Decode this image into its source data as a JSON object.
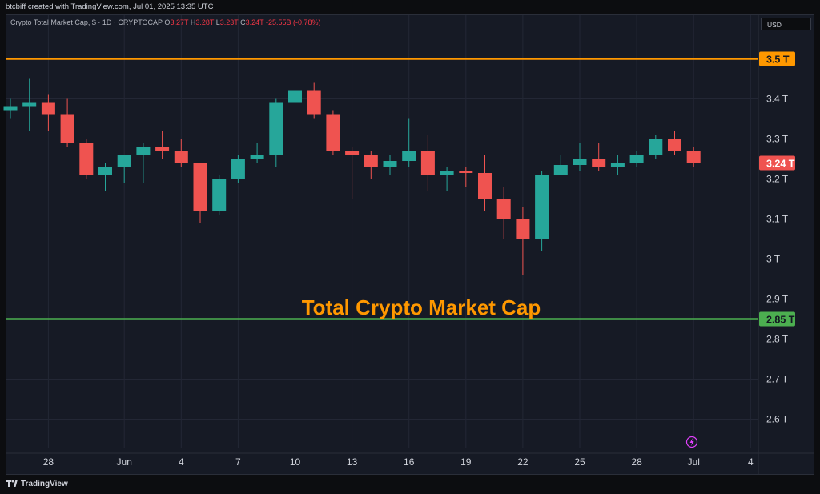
{
  "header": {
    "attribution": "btcbiff created with TradingView.com, Jul 01, 2025 13:35 UTC"
  },
  "legend": {
    "symbol": "Crypto Total Market Cap, $ · 1D · CRYPTOCAP",
    "open_label": "O",
    "open": "3.27T",
    "high_label": "H",
    "high": "3.28T",
    "low_label": "L",
    "low": "3.23T",
    "close_label": "C",
    "close": "3.24T",
    "change": "-25.55B (-0.78%)"
  },
  "currency_button": "USD",
  "footer": {
    "brand": "TradingView",
    "logo_icon": "tradingview-logo-icon"
  },
  "colors": {
    "up": "#26a69a",
    "down": "#ef5350",
    "resistance": "#ff9800",
    "support": "#4caf50",
    "title": "#ff9800",
    "grid": "#232735",
    "axis_text": "#d1d4dc"
  },
  "chart_data": {
    "type": "candlestick",
    "title": "Total Crypto Market Cap",
    "unit": "T",
    "ylim": [
      2.52,
      3.58
    ],
    "y_ticks": [
      2.6,
      2.7,
      2.8,
      2.9,
      3.0,
      3.1,
      3.2,
      3.3,
      3.4
    ],
    "y_tick_labels": [
      "2.6 T",
      "2.7 T",
      "2.8 T",
      "2.9 T",
      "3 T",
      "3.1 T",
      "3.2 T",
      "3.3 T",
      "3.4 T"
    ],
    "x_labels": [
      {
        "label": "28",
        "date": "2025-05-28"
      },
      {
        "label": "Jun",
        "date": "2025-06-01"
      },
      {
        "label": "4",
        "date": "2025-06-04"
      },
      {
        "label": "7",
        "date": "2025-06-07"
      },
      {
        "label": "10",
        "date": "2025-06-10"
      },
      {
        "label": "13",
        "date": "2025-06-13"
      },
      {
        "label": "16",
        "date": "2025-06-16"
      },
      {
        "label": "19",
        "date": "2025-06-19"
      },
      {
        "label": "22",
        "date": "2025-06-22"
      },
      {
        "label": "25",
        "date": "2025-06-25"
      },
      {
        "label": "28",
        "date": "2025-06-28"
      },
      {
        "label": "Jul",
        "date": "2025-07-01"
      },
      {
        "label": "4",
        "date": "2025-07-04"
      }
    ],
    "candles": [
      {
        "date": "2025-05-26",
        "open": 3.37,
        "high": 3.4,
        "low": 3.35,
        "close": 3.38
      },
      {
        "date": "2025-05-27",
        "open": 3.38,
        "high": 3.45,
        "low": 3.32,
        "close": 3.39
      },
      {
        "date": "2025-05-28",
        "open": 3.39,
        "high": 3.41,
        "low": 3.32,
        "close": 3.36
      },
      {
        "date": "2025-05-29",
        "open": 3.36,
        "high": 3.4,
        "low": 3.28,
        "close": 3.29
      },
      {
        "date": "2025-05-30",
        "open": 3.29,
        "high": 3.3,
        "low": 3.2,
        "close": 3.21
      },
      {
        "date": "2025-05-31",
        "open": 3.21,
        "high": 3.24,
        "low": 3.17,
        "close": 3.23
      },
      {
        "date": "2025-06-01",
        "open": 3.23,
        "high": 3.26,
        "low": 3.19,
        "close": 3.26
      },
      {
        "date": "2025-06-02",
        "open": 3.26,
        "high": 3.29,
        "low": 3.19,
        "close": 3.28
      },
      {
        "date": "2025-06-03",
        "open": 3.28,
        "high": 3.32,
        "low": 3.25,
        "close": 3.27
      },
      {
        "date": "2025-06-04",
        "open": 3.27,
        "high": 3.3,
        "low": 3.23,
        "close": 3.24
      },
      {
        "date": "2025-06-05",
        "open": 3.24,
        "high": 3.24,
        "low": 3.09,
        "close": 3.12
      },
      {
        "date": "2025-06-06",
        "open": 3.12,
        "high": 3.21,
        "low": 3.11,
        "close": 3.2
      },
      {
        "date": "2025-06-07",
        "open": 3.2,
        "high": 3.26,
        "low": 3.19,
        "close": 3.25
      },
      {
        "date": "2025-06-08",
        "open": 3.25,
        "high": 3.29,
        "low": 3.24,
        "close": 3.26
      },
      {
        "date": "2025-06-09",
        "open": 3.26,
        "high": 3.4,
        "low": 3.23,
        "close": 3.39
      },
      {
        "date": "2025-06-10",
        "open": 3.39,
        "high": 3.43,
        "low": 3.34,
        "close": 3.42
      },
      {
        "date": "2025-06-11",
        "open": 3.42,
        "high": 3.44,
        "low": 3.35,
        "close": 3.36
      },
      {
        "date": "2025-06-12",
        "open": 3.36,
        "high": 3.37,
        "low": 3.26,
        "close": 3.27
      },
      {
        "date": "2025-06-13",
        "open": 3.27,
        "high": 3.28,
        "low": 3.15,
        "close": 3.26
      },
      {
        "date": "2025-06-14",
        "open": 3.26,
        "high": 3.27,
        "low": 3.2,
        "close": 3.23
      },
      {
        "date": "2025-06-15",
        "open": 3.23,
        "high": 3.26,
        "low": 3.21,
        "close": 3.245
      },
      {
        "date": "2025-06-16",
        "open": 3.245,
        "high": 3.35,
        "low": 3.23,
        "close": 3.27
      },
      {
        "date": "2025-06-17",
        "open": 3.27,
        "high": 3.31,
        "low": 3.17,
        "close": 3.21
      },
      {
        "date": "2025-06-18",
        "open": 3.21,
        "high": 3.23,
        "low": 3.17,
        "close": 3.22
      },
      {
        "date": "2025-06-19",
        "open": 3.22,
        "high": 3.23,
        "low": 3.18,
        "close": 3.215
      },
      {
        "date": "2025-06-20",
        "open": 3.215,
        "high": 3.26,
        "low": 3.12,
        "close": 3.15
      },
      {
        "date": "2025-06-21",
        "open": 3.15,
        "high": 3.18,
        "low": 3.05,
        "close": 3.1
      },
      {
        "date": "2025-06-22",
        "open": 3.1,
        "high": 3.13,
        "low": 2.96,
        "close": 3.05
      },
      {
        "date": "2025-06-23",
        "open": 3.05,
        "high": 3.22,
        "low": 3.02,
        "close": 3.21
      },
      {
        "date": "2025-06-24",
        "open": 3.21,
        "high": 3.26,
        "low": 3.21,
        "close": 3.235
      },
      {
        "date": "2025-06-25",
        "open": 3.235,
        "high": 3.29,
        "low": 3.22,
        "close": 3.25
      },
      {
        "date": "2025-06-26",
        "open": 3.25,
        "high": 3.29,
        "low": 3.22,
        "close": 3.23
      },
      {
        "date": "2025-06-27",
        "open": 3.23,
        "high": 3.26,
        "low": 3.21,
        "close": 3.24
      },
      {
        "date": "2025-06-28",
        "open": 3.24,
        "high": 3.27,
        "low": 3.23,
        "close": 3.26
      },
      {
        "date": "2025-06-29",
        "open": 3.26,
        "high": 3.31,
        "low": 3.25,
        "close": 3.3
      },
      {
        "date": "2025-06-30",
        "open": 3.3,
        "high": 3.32,
        "low": 3.26,
        "close": 3.27
      },
      {
        "date": "2025-07-01",
        "open": 3.27,
        "high": 3.28,
        "low": 3.23,
        "close": 3.24
      }
    ],
    "horizontal_lines": [
      {
        "value": 3.5,
        "label": "3.5 T",
        "color": "#ff9800"
      },
      {
        "value": 2.85,
        "label": "2.85 T",
        "color": "#4caf50"
      }
    ],
    "last_price": {
      "value": 3.24,
      "label": "3.24 T",
      "color": "#ef5350"
    },
    "grid": true
  }
}
